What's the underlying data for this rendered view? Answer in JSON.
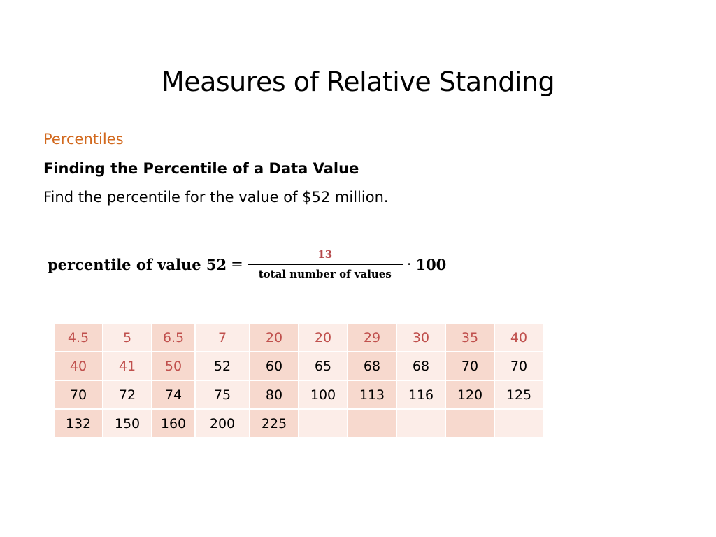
{
  "title": "Measures of Relative Standing",
  "section": "Percentiles",
  "subheading": "Finding the Percentile of a Data Value",
  "prompt": "Find the percentile for the value of $52 million.",
  "formula": {
    "lhs": "percentile of value 52",
    "equals": "=",
    "numerator": "13",
    "denominator": "total number of values",
    "operator": "·",
    "multiplier": "100"
  },
  "colors": {
    "section": "#d2691e",
    "highlight": "#c0504d",
    "cell_dark": "#f7d9ce",
    "cell_light": "#fcede8"
  },
  "table": {
    "rows": [
      [
        "4.5",
        "5",
        "6.5",
        "7",
        "20",
        "20",
        "29",
        "30",
        "35",
        "40"
      ],
      [
        "40",
        "41",
        "50",
        "52",
        "60",
        "65",
        "68",
        "68",
        "70",
        "70"
      ],
      [
        "70",
        "72",
        "74",
        "75",
        "80",
        "100",
        "113",
        "116",
        "120",
        "125"
      ],
      [
        "132",
        "150",
        "160",
        "200",
        "225",
        "",
        "",
        "",
        "",
        ""
      ]
    ],
    "highlighted_count": 13
  }
}
